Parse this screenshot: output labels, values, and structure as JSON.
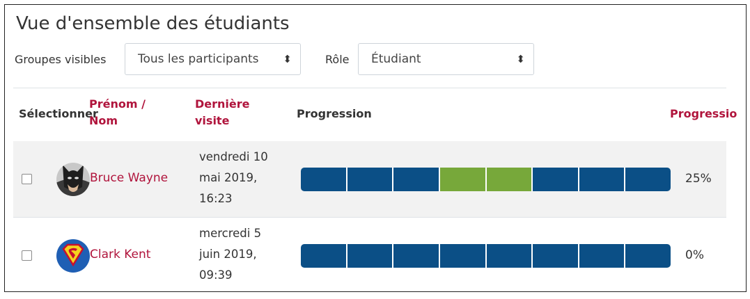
{
  "title": "Vue d'ensemble des étudiants",
  "filters": {
    "groups_label": "Groupes visibles",
    "groups_value": "Tous les participants",
    "role_label": "Rôle",
    "role_value": "Étudiant"
  },
  "columns": {
    "select": "Sélectionner",
    "name_line1": "Prénom /",
    "name_line2": "Nom",
    "visit_line1": "Dernière",
    "visit_line2": "visite",
    "progress": "Progression",
    "progress_pct": "Progressio"
  },
  "colors": {
    "incomplete": "#0b4f86",
    "complete": "#77a83a",
    "link": "#b0143c"
  },
  "students": [
    {
      "name": "Bruce Wayne",
      "avatar": "batman-avatar-icon",
      "visit_line1": "vendredi 10",
      "visit_line2": "mai 2019,",
      "visit_line3": "16:23",
      "segments": [
        "incomplete",
        "incomplete",
        "incomplete",
        "complete",
        "complete",
        "incomplete",
        "incomplete",
        "incomplete"
      ],
      "percent": "25%"
    },
    {
      "name": "Clark Kent",
      "avatar": "superman-avatar-icon",
      "visit_line1": "mercredi 5",
      "visit_line2": "juin 2019,",
      "visit_line3": "09:39",
      "segments": [
        "incomplete",
        "incomplete",
        "incomplete",
        "incomplete",
        "incomplete",
        "incomplete",
        "incomplete",
        "incomplete"
      ],
      "percent": "0%"
    }
  ]
}
